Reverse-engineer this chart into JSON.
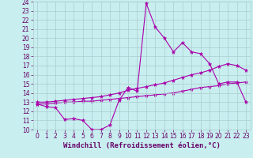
{
  "background_color": "#c8eef0",
  "grid_color": "#aacccc",
  "line_color": "#aa00aa",
  "xlabel": "Windchill (Refroidissement éolien,°C)",
  "xlabel_color": "#660066",
  "xlabel_fontsize": 6.5,
  "tick_color": "#660066",
  "tick_fontsize": 5.5,
  "xlim": [
    -0.5,
    23.5
  ],
  "ylim": [
    10,
    24
  ],
  "yticks": [
    10,
    11,
    12,
    13,
    14,
    15,
    16,
    17,
    18,
    19,
    20,
    21,
    22,
    23,
    24
  ],
  "xticks": [
    0,
    1,
    2,
    3,
    4,
    5,
    6,
    7,
    8,
    9,
    10,
    11,
    12,
    13,
    14,
    15,
    16,
    17,
    18,
    19,
    20,
    21,
    22,
    23
  ],
  "curve1_x": [
    0,
    1,
    2,
    3,
    4,
    5,
    6,
    7,
    8,
    9,
    10,
    11,
    12,
    13,
    14,
    15,
    16,
    17,
    18,
    19,
    20,
    21,
    22,
    23
  ],
  "curve1_y": [
    12.8,
    12.5,
    12.4,
    11.1,
    11.2,
    11.0,
    10.0,
    10.0,
    10.5,
    13.2,
    14.6,
    14.2,
    23.8,
    21.2,
    20.0,
    18.5,
    19.5,
    18.5,
    18.3,
    17.2,
    15.0,
    15.2,
    15.2,
    13.0
  ],
  "curve2_x": [
    0,
    1,
    2,
    3,
    4,
    5,
    6,
    7,
    8,
    9,
    10,
    11,
    12,
    13,
    14,
    15,
    16,
    17,
    18,
    19,
    20,
    21,
    22,
    23
  ],
  "curve2_y": [
    13.0,
    13.0,
    13.1,
    13.2,
    13.3,
    13.4,
    13.5,
    13.6,
    13.8,
    14.0,
    14.3,
    14.5,
    14.7,
    14.9,
    15.1,
    15.4,
    15.7,
    16.0,
    16.2,
    16.5,
    16.9,
    17.2,
    17.0,
    16.5
  ],
  "curve3_x": [
    0,
    1,
    2,
    3,
    4,
    5,
    6,
    7,
    8,
    9,
    10,
    11,
    12,
    13,
    14,
    15,
    16,
    17,
    18,
    19,
    20,
    21,
    22,
    23
  ],
  "curve3_y": [
    12.8,
    12.8,
    12.9,
    13.0,
    13.0,
    13.1,
    13.1,
    13.2,
    13.3,
    13.4,
    13.5,
    13.6,
    13.7,
    13.8,
    13.9,
    14.0,
    14.2,
    14.4,
    14.6,
    14.7,
    14.8,
    15.0,
    15.1,
    15.2
  ]
}
